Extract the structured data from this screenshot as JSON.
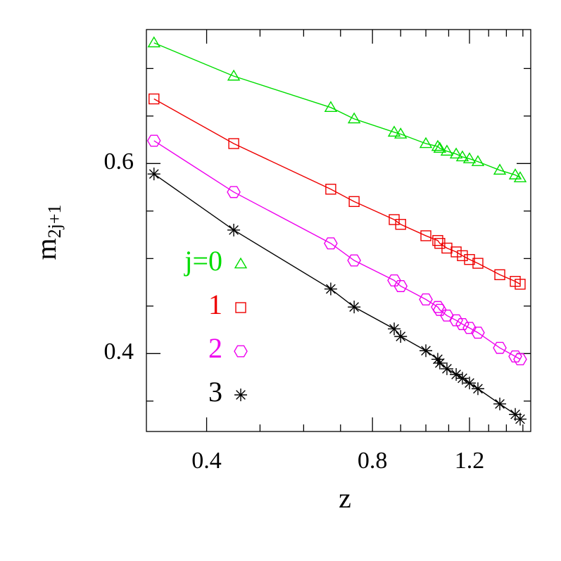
{
  "chart_data": {
    "type": "line",
    "xlabel": "z",
    "ylabel": "m",
    "ylabel_sub": "2j+1",
    "xscale": "log",
    "xlim": [
      0.311,
      1.55
    ],
    "ylim": [
      0.318,
      0.741
    ],
    "xticks": [
      0.4,
      0.8,
      1.2
    ],
    "xminorticks": [
      0.5,
      0.6,
      0.7,
      0.9,
      1.0,
      1.1,
      1.3,
      1.4,
      1.5
    ],
    "yticks": [
      0.4,
      0.6
    ],
    "yminorticks": [
      0.35,
      0.45,
      0.5,
      0.55,
      0.65,
      0.7
    ],
    "x": [
      0.321,
      0.448,
      0.672,
      0.741,
      0.876,
      0.9,
      1.0,
      1.051,
      1.06,
      1.092,
      1.135,
      1.165,
      1.2,
      1.243,
      1.362,
      1.453,
      1.483
    ],
    "series": [
      {
        "name": "j=0",
        "color": "#00dd00",
        "marker": "triangle",
        "values": [
          0.727,
          0.692,
          0.659,
          0.647,
          0.633,
          0.631,
          0.621,
          0.618,
          0.616,
          0.613,
          0.61,
          0.607,
          0.605,
          0.602,
          0.593,
          0.588,
          0.585
        ]
      },
      {
        "name": "1",
        "color": "#ee0000",
        "marker": "square",
        "values": [
          0.668,
          0.621,
          0.573,
          0.56,
          0.541,
          0.536,
          0.524,
          0.519,
          0.516,
          0.511,
          0.507,
          0.503,
          0.499,
          0.495,
          0.483,
          0.476,
          0.473
        ]
      },
      {
        "name": "2",
        "color": "#ee00ee",
        "marker": "hexagon",
        "values": [
          0.624,
          0.57,
          0.516,
          0.498,
          0.477,
          0.471,
          0.457,
          0.449,
          0.446,
          0.44,
          0.435,
          0.431,
          0.427,
          0.422,
          0.406,
          0.397,
          0.394
        ]
      },
      {
        "name": "3",
        "color": "#000000",
        "marker": "asterisk",
        "values": [
          0.589,
          0.53,
          0.468,
          0.449,
          0.426,
          0.418,
          0.403,
          0.394,
          0.39,
          0.384,
          0.378,
          0.374,
          0.369,
          0.363,
          0.347,
          0.336,
          0.331
        ]
      }
    ]
  }
}
